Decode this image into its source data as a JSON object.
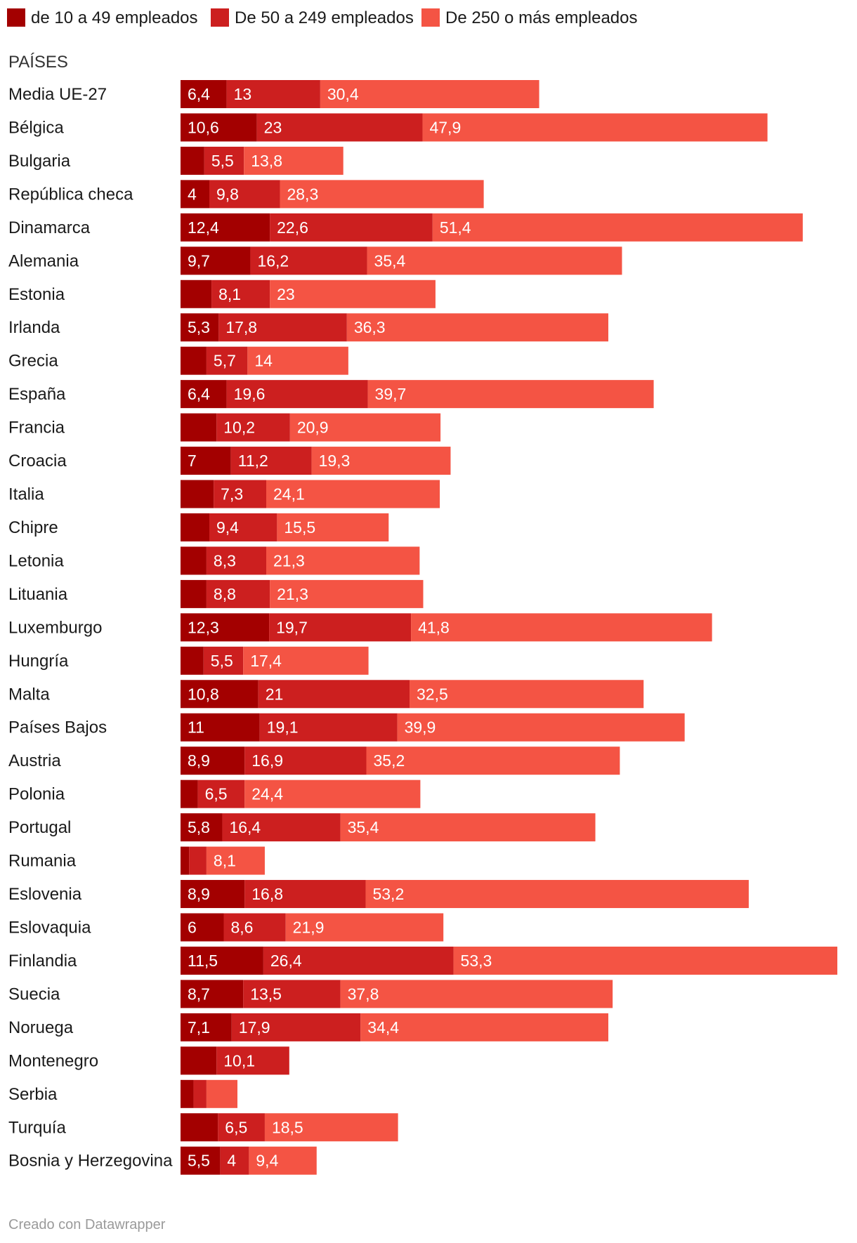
{
  "chart_data": {
    "type": "bar",
    "orientation": "horizontal",
    "stacked": true,
    "header": "PAÍSES",
    "footer": "Creado con Datawrapper",
    "legend_position": "top-left",
    "colors": [
      "#a30000",
      "#cc1f1f",
      "#f45444"
    ],
    "series": [
      {
        "name": "de 10 a 49 empleados",
        "values": [
          6.4,
          10.6,
          3.3,
          4.0,
          12.4,
          9.7,
          4.3,
          5.3,
          3.6,
          6.4,
          5.0,
          7.0,
          4.6,
          4.0,
          3.6,
          3.6,
          12.3,
          3.2,
          10.8,
          11.0,
          8.9,
          2.4,
          5.8,
          1.2,
          8.9,
          6.0,
          11.5,
          8.7,
          7.1,
          5.0,
          1.8,
          5.2,
          5.5
        ]
      },
      {
        "name": "De 50 a 249 empleados",
        "values": [
          13,
          23,
          5.5,
          9.8,
          22.6,
          16.2,
          8.1,
          17.8,
          5.7,
          19.6,
          10.2,
          11.2,
          7.3,
          9.4,
          8.3,
          8.8,
          19.7,
          5.5,
          21,
          19.1,
          16.9,
          6.5,
          16.4,
          2.4,
          16.8,
          8.6,
          26.4,
          13.5,
          17.9,
          10.1,
          1.8,
          6.5,
          4
        ]
      },
      {
        "name": "De 250 o más empleados",
        "values": [
          30.4,
          47.9,
          13.8,
          28.3,
          51.4,
          35.4,
          23,
          36.3,
          14,
          39.7,
          20.9,
          19.3,
          24.1,
          15.5,
          21.3,
          21.3,
          41.8,
          17.4,
          32.5,
          39.9,
          35.2,
          24.4,
          35.4,
          8.1,
          53.2,
          21.9,
          53.3,
          37.8,
          34.4,
          null,
          4.3,
          18.5,
          9.4
        ]
      }
    ],
    "labels": [
      [
        "6,4",
        "13",
        "30,4"
      ],
      [
        "10,6",
        "23",
        "47,9"
      ],
      [
        "",
        "5,5",
        "13,8"
      ],
      [
        "4",
        "9,8",
        "28,3"
      ],
      [
        "12,4",
        "22,6",
        "51,4"
      ],
      [
        "9,7",
        "16,2",
        "35,4"
      ],
      [
        "",
        "8,1",
        "23"
      ],
      [
        "5,3",
        "17,8",
        "36,3"
      ],
      [
        "",
        "5,7",
        "14"
      ],
      [
        "6,4",
        "19,6",
        "39,7"
      ],
      [
        "",
        "10,2",
        "20,9"
      ],
      [
        "7",
        "11,2",
        "19,3"
      ],
      [
        "",
        "7,3",
        "24,1"
      ],
      [
        "",
        "9,4",
        "15,5"
      ],
      [
        "",
        "8,3",
        "21,3"
      ],
      [
        "",
        "8,8",
        "21,3"
      ],
      [
        "12,3",
        "19,7",
        "41,8"
      ],
      [
        "",
        "5,5",
        "17,4"
      ],
      [
        "10,8",
        "21",
        "32,5"
      ],
      [
        "11",
        "19,1",
        "39,9"
      ],
      [
        "8,9",
        "16,9",
        "35,2"
      ],
      [
        "",
        "6,5",
        "24,4"
      ],
      [
        "5,8",
        "16,4",
        "35,4"
      ],
      [
        "",
        "",
        "8,1"
      ],
      [
        "8,9",
        "16,8",
        "53,2"
      ],
      [
        "6",
        "8,6",
        "21,9"
      ],
      [
        "11,5",
        "26,4",
        "53,3"
      ],
      [
        "8,7",
        "13,5",
        "37,8"
      ],
      [
        "7,1",
        "17,9",
        "34,4"
      ],
      [
        "",
        "10,1",
        ""
      ],
      [
        "",
        "",
        ""
      ],
      [
        "",
        "6,5",
        "18,5"
      ],
      [
        "5,5",
        "4",
        "9,4"
      ]
    ],
    "categories": [
      "Media UE-27",
      "Bélgica",
      "Bulgaria",
      "República checa",
      "Dinamarca",
      "Alemania",
      "Estonia",
      "Irlanda",
      "Grecia",
      "España",
      "Francia",
      "Croacia",
      "Italia",
      "Chipre",
      "Letonia",
      "Lituania",
      "Luxemburgo",
      "Hungría",
      "Malta",
      "Países Bajos",
      "Austria",
      "Polonia",
      "Portugal",
      "Rumania",
      "Eslovenia",
      "Eslovaquia",
      "Finlandia",
      "Suecia",
      "Noruega",
      "Montenegro",
      "Serbia",
      "Turquía",
      "Bosnia y Herzegovina"
    ],
    "xlim": [
      0,
      91.2
    ]
  }
}
